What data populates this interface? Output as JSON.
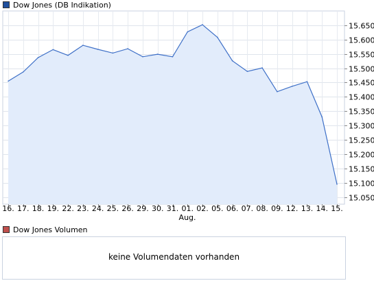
{
  "price_chart": {
    "legend": "Dow Jones (DB Indikation)",
    "legend_color": "#1f4f9c",
    "line_color": "#3d6fc7",
    "fill_color": "#e2ecfb"
  },
  "volume_chart": {
    "legend": "Dow Jones Volumen",
    "legend_color": "#c0504d",
    "message": "keine Volumendaten vorhanden"
  },
  "chart_data": {
    "type": "area",
    "categories": [
      "16.",
      "17.",
      "18.",
      "19.",
      "22.",
      "23.",
      "24.",
      "25.",
      "26.",
      "29.",
      "30.",
      "31.",
      "01.",
      "02.",
      "05.",
      "06.",
      "07.",
      "08.",
      "09.",
      "12.",
      "13.",
      "14.",
      "15."
    ],
    "month_label": "Aug.",
    "month_label_index": 13,
    "series": [
      {
        "name": "Dow Jones (DB Indikation)",
        "values": [
          15455,
          15487,
          15537,
          15565,
          15545,
          15580,
          15566,
          15553,
          15568,
          15540,
          15549,
          15540,
          15627,
          15652,
          15608,
          15526,
          15489,
          15501,
          15418,
          15437,
          15453,
          15330,
          15095
        ]
      }
    ],
    "y_ticks": [
      15050,
      15100,
      15150,
      15200,
      15250,
      15300,
      15350,
      15400,
      15450,
      15500,
      15550,
      15600,
      15650
    ],
    "y_tick_labels": [
      "15.050",
      "15.100",
      "15.150",
      "15.200",
      "15.250",
      "15.300",
      "15.350",
      "15.400",
      "15.450",
      "15.500",
      "15.550",
      "15.600",
      "15.650"
    ],
    "ylim": [
      15025,
      15700
    ],
    "grid": true,
    "y_axis_side": "right"
  }
}
